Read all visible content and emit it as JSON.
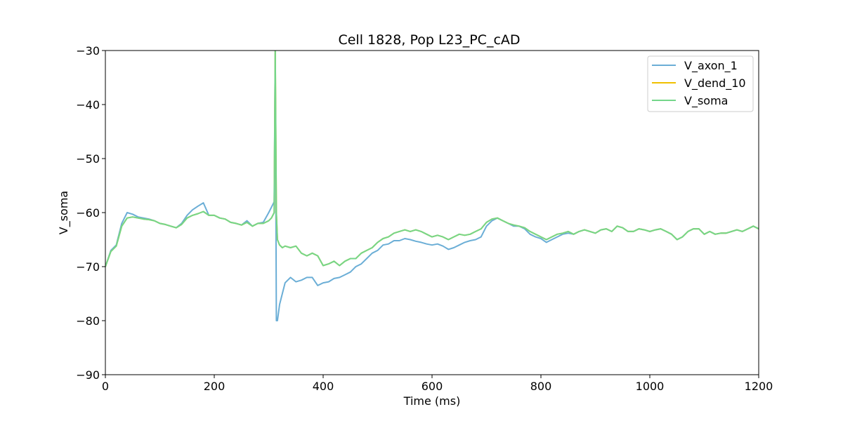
{
  "chart_data": {
    "type": "line",
    "title": "Cell 1828, Pop L23_PC_cAD",
    "xlabel": "Time (ms)",
    "ylabel": "V_soma",
    "xlim": [
      0,
      1200
    ],
    "ylim": [
      -90,
      -30
    ],
    "xticks": [
      0,
      200,
      400,
      600,
      800,
      1000,
      1200
    ],
    "yticks": [
      -90,
      -80,
      -70,
      -60,
      -50,
      -40,
      -30
    ],
    "grid": false,
    "legend_position": "top-right",
    "series": [
      {
        "name": "V_axon_1",
        "color": "#6baed6",
        "x": [
          0,
          10,
          20,
          30,
          40,
          50,
          60,
          70,
          80,
          90,
          100,
          110,
          120,
          130,
          140,
          150,
          160,
          170,
          180,
          190,
          200,
          210,
          220,
          230,
          240,
          250,
          260,
          270,
          280,
          290,
          300,
          305,
          310,
          312,
          314,
          316,
          320,
          325,
          330,
          340,
          350,
          360,
          370,
          380,
          390,
          400,
          410,
          420,
          430,
          440,
          450,
          460,
          470,
          480,
          490,
          500,
          510,
          520,
          530,
          540,
          550,
          560,
          570,
          580,
          590,
          600,
          610,
          620,
          630,
          640,
          650,
          660,
          670,
          680,
          690,
          700,
          710,
          720,
          730,
          740,
          750,
          760,
          770,
          780,
          790,
          800,
          810,
          820,
          830,
          840,
          850,
          860,
          870,
          880,
          890,
          900,
          910,
          920,
          930,
          940,
          950,
          960,
          970,
          980,
          990,
          1000,
          1010,
          1020,
          1030,
          1040,
          1050,
          1060,
          1070,
          1080,
          1090,
          1100,
          1110,
          1120,
          1130,
          1140,
          1150,
          1160,
          1170,
          1180,
          1190,
          1200
        ],
        "values": [
          -70,
          -67,
          -66,
          -62,
          -60,
          -60.3,
          -60.8,
          -61,
          -61.2,
          -61.5,
          -62,
          -62.2,
          -62.5,
          -62.8,
          -62,
          -60.5,
          -59.5,
          -58.8,
          -58.2,
          -60.5,
          -60.5,
          -61,
          -61.2,
          -61.8,
          -62,
          -62.3,
          -61.5,
          -62.5,
          -62,
          -61.8,
          -60,
          -59,
          -58,
          -30,
          -80,
          -80,
          -77,
          -75,
          -73,
          -72,
          -72.8,
          -72.5,
          -72,
          -72,
          -73.5,
          -73,
          -72.8,
          -72.2,
          -72,
          -71.5,
          -71,
          -70,
          -69.5,
          -68.5,
          -67.5,
          -67,
          -66,
          -65.8,
          -65.2,
          -65.2,
          -64.8,
          -65,
          -65.3,
          -65.5,
          -65.8,
          -66,
          -65.8,
          -66.2,
          -66.8,
          -66.5,
          -66,
          -65.5,
          -65.2,
          -65,
          -64.5,
          -62.5,
          -61.5,
          -61,
          -61.5,
          -62,
          -62.5,
          -62.5,
          -63,
          -64,
          -64.5,
          -64.8,
          -65.5,
          -65,
          -64.5,
          -64,
          -63.8,
          -64,
          -63.5,
          -63.2,
          -63.5,
          -63.8,
          -63.2,
          -63,
          -63.5,
          -62.5,
          -62.8,
          -63.5,
          -63.5,
          -63,
          -63.2,
          -63.5,
          -63.2,
          -63,
          -63.5,
          -64,
          -65,
          -64.5,
          -63.5,
          -63,
          -63,
          -64,
          -63.5,
          -64,
          -63.8,
          -63.8,
          -63.5,
          -63.2,
          -63.5,
          -63,
          -62.5,
          -63
        ]
      },
      {
        "name": "V_dend_10",
        "color": "#f0c000",
        "x": [
          0,
          10,
          20,
          30,
          40,
          50,
          60,
          70,
          80,
          90,
          100,
          110,
          120,
          130,
          140,
          150,
          160,
          170,
          180,
          190,
          200,
          210,
          220,
          230,
          240,
          250,
          260,
          270,
          280,
          290,
          300,
          305,
          310,
          312,
          314,
          316,
          320,
          325,
          330,
          340,
          350,
          360,
          370,
          380,
          390,
          400,
          410,
          420,
          430,
          440,
          450,
          460,
          470,
          480,
          490,
          500,
          510,
          520,
          530,
          540,
          550,
          560,
          570,
          580,
          590,
          600,
          610,
          620,
          630,
          640,
          650,
          660,
          670,
          680,
          690,
          700,
          710,
          720,
          730,
          740,
          750,
          760,
          770,
          780,
          790,
          800,
          810,
          820,
          830,
          840,
          850,
          860,
          870,
          880,
          890,
          900,
          910,
          920,
          930,
          940,
          950,
          960,
          970,
          980,
          990,
          1000,
          1010,
          1020,
          1030,
          1040,
          1050,
          1060,
          1070,
          1080,
          1090,
          1100,
          1110,
          1120,
          1130,
          1140,
          1150,
          1160,
          1170,
          1180,
          1190,
          1200
        ],
        "values": [
          -70,
          -67.2,
          -66.2,
          -62.5,
          -61,
          -60.8,
          -61,
          -61.2,
          -61.3,
          -61.5,
          -62,
          -62.2,
          -62.5,
          -62.8,
          -62.2,
          -61,
          -60.5,
          -60.2,
          -59.8,
          -60.5,
          -60.5,
          -61,
          -61.2,
          -61.8,
          -62,
          -62.3,
          -61.8,
          -62.5,
          -62,
          -62,
          -61.5,
          -61,
          -60,
          -30,
          -60,
          -65,
          -66,
          -66.5,
          -66.2,
          -66.5,
          -66.2,
          -67.5,
          -68,
          -67.5,
          -68,
          -69.8,
          -69.5,
          -69,
          -69.8,
          -69,
          -68.5,
          -68.5,
          -67.5,
          -67,
          -66.5,
          -65.5,
          -64.8,
          -64.5,
          -63.8,
          -63.5,
          -63.2,
          -63.5,
          -63.2,
          -63.5,
          -64,
          -64.5,
          -64.2,
          -64.5,
          -65,
          -64.5,
          -64,
          -64.2,
          -64,
          -63.5,
          -63,
          -61.8,
          -61.2,
          -61,
          -61.5,
          -62,
          -62.3,
          -62.5,
          -62.8,
          -63.5,
          -64,
          -64.5,
          -65,
          -64.5,
          -64,
          -63.8,
          -63.5,
          -64,
          -63.5,
          -63.2,
          -63.5,
          -63.8,
          -63.2,
          -63,
          -63.5,
          -62.5,
          -62.8,
          -63.5,
          -63.5,
          -63,
          -63.2,
          -63.5,
          -63.2,
          -63,
          -63.5,
          -64,
          -65,
          -64.5,
          -63.5,
          -63,
          -63,
          -64,
          -63.5,
          -64,
          -63.8,
          -63.8,
          -63.5,
          -63.2,
          -63.5,
          -63,
          -62.5,
          -63
        ]
      },
      {
        "name": "V_soma",
        "color": "#74d68a",
        "x": [
          0,
          10,
          20,
          30,
          40,
          50,
          60,
          70,
          80,
          90,
          100,
          110,
          120,
          130,
          140,
          150,
          160,
          170,
          180,
          190,
          200,
          210,
          220,
          230,
          240,
          250,
          260,
          270,
          280,
          290,
          300,
          305,
          310,
          312,
          314,
          316,
          320,
          325,
          330,
          340,
          350,
          360,
          370,
          380,
          390,
          400,
          410,
          420,
          430,
          440,
          450,
          460,
          470,
          480,
          490,
          500,
          510,
          520,
          530,
          540,
          550,
          560,
          570,
          580,
          590,
          600,
          610,
          620,
          630,
          640,
          650,
          660,
          670,
          680,
          690,
          700,
          710,
          720,
          730,
          740,
          750,
          760,
          770,
          780,
          790,
          800,
          810,
          820,
          830,
          840,
          850,
          860,
          870,
          880,
          890,
          900,
          910,
          920,
          930,
          940,
          950,
          960,
          970,
          980,
          990,
          1000,
          1010,
          1020,
          1030,
          1040,
          1050,
          1060,
          1070,
          1080,
          1090,
          1100,
          1110,
          1120,
          1130,
          1140,
          1150,
          1160,
          1170,
          1180,
          1190,
          1200
        ],
        "values": [
          -70,
          -67.2,
          -66.2,
          -62.5,
          -61,
          -60.8,
          -61,
          -61.2,
          -61.3,
          -61.5,
          -62,
          -62.2,
          -62.5,
          -62.8,
          -62.2,
          -61,
          -60.5,
          -60.2,
          -59.8,
          -60.5,
          -60.5,
          -61,
          -61.2,
          -61.8,
          -62,
          -62.3,
          -61.8,
          -62.5,
          -62,
          -62,
          -61.5,
          -61,
          -60,
          -30,
          -60,
          -65,
          -66,
          -66.5,
          -66.2,
          -66.5,
          -66.2,
          -67.5,
          -68,
          -67.5,
          -68,
          -69.8,
          -69.5,
          -69,
          -69.8,
          -69,
          -68.5,
          -68.5,
          -67.5,
          -67,
          -66.5,
          -65.5,
          -64.8,
          -64.5,
          -63.8,
          -63.5,
          -63.2,
          -63.5,
          -63.2,
          -63.5,
          -64,
          -64.5,
          -64.2,
          -64.5,
          -65,
          -64.5,
          -64,
          -64.2,
          -64,
          -63.5,
          -63,
          -61.8,
          -61.2,
          -61,
          -61.5,
          -62,
          -62.3,
          -62.5,
          -62.8,
          -63.5,
          -64,
          -64.5,
          -65,
          -64.5,
          -64,
          -63.8,
          -63.5,
          -64,
          -63.5,
          -63.2,
          -63.5,
          -63.8,
          -63.2,
          -63,
          -63.5,
          -62.5,
          -62.8,
          -63.5,
          -63.5,
          -63,
          -63.2,
          -63.5,
          -63.2,
          -63,
          -63.5,
          -64,
          -65,
          -64.5,
          -63.5,
          -63,
          -63,
          -64,
          -63.5,
          -64,
          -63.8,
          -63.8,
          -63.5,
          -63.2,
          -63.5,
          -63,
          -62.5,
          -63
        ]
      }
    ]
  }
}
